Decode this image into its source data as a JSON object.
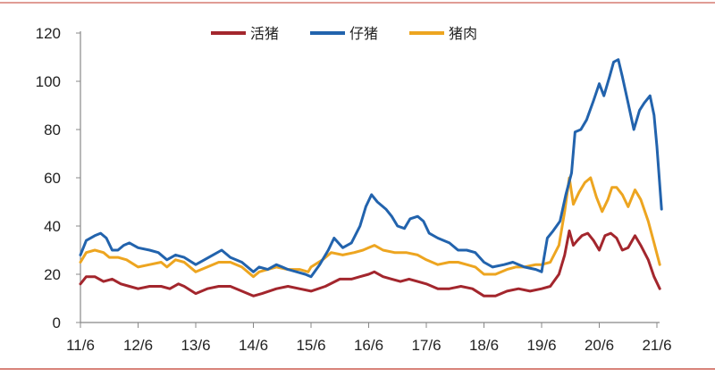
{
  "chart_data": {
    "type": "line",
    "title": "",
    "xlabel": "",
    "ylabel": "",
    "x_ticks": [
      "11/6",
      "12/6",
      "13/6",
      "14/6",
      "15/6",
      "16/6",
      "17/6",
      "18/6",
      "19/6",
      "20/6",
      "21/6"
    ],
    "ylim": [
      0,
      120
    ],
    "y_ticks": [
      0,
      20,
      40,
      60,
      80,
      100,
      120
    ],
    "grid": false,
    "legend_position": "top-center",
    "series": [
      {
        "name": "活猪",
        "color": "#a3262d",
        "points": [
          [
            0.0,
            16
          ],
          [
            0.1,
            19
          ],
          [
            0.25,
            19
          ],
          [
            0.4,
            17
          ],
          [
            0.55,
            18
          ],
          [
            0.7,
            16
          ],
          [
            0.85,
            15
          ],
          [
            1.0,
            14
          ],
          [
            1.2,
            15
          ],
          [
            1.4,
            15
          ],
          [
            1.55,
            14
          ],
          [
            1.7,
            16
          ],
          [
            1.8,
            15
          ],
          [
            2.0,
            12
          ],
          [
            2.2,
            14
          ],
          [
            2.4,
            15
          ],
          [
            2.6,
            15
          ],
          [
            2.8,
            13
          ],
          [
            3.0,
            11
          ],
          [
            3.15,
            12
          ],
          [
            3.4,
            14
          ],
          [
            3.6,
            15
          ],
          [
            3.8,
            14
          ],
          [
            4.0,
            13
          ],
          [
            4.25,
            15
          ],
          [
            4.5,
            18
          ],
          [
            4.7,
            18
          ],
          [
            4.85,
            19
          ],
          [
            5.0,
            20
          ],
          [
            5.1,
            21
          ],
          [
            5.25,
            19
          ],
          [
            5.4,
            18
          ],
          [
            5.55,
            17
          ],
          [
            5.7,
            18
          ],
          [
            5.85,
            17
          ],
          [
            6.0,
            16
          ],
          [
            6.2,
            14
          ],
          [
            6.4,
            14
          ],
          [
            6.6,
            15
          ],
          [
            6.8,
            14
          ],
          [
            7.0,
            11
          ],
          [
            7.2,
            11
          ],
          [
            7.4,
            13
          ],
          [
            7.6,
            14
          ],
          [
            7.8,
            13
          ],
          [
            8.0,
            14
          ],
          [
            8.15,
            15
          ],
          [
            8.3,
            20
          ],
          [
            8.4,
            28
          ],
          [
            8.48,
            38
          ],
          [
            8.55,
            32
          ],
          [
            8.62,
            34
          ],
          [
            8.7,
            36
          ],
          [
            8.8,
            37
          ],
          [
            8.9,
            34
          ],
          [
            9.0,
            30
          ],
          [
            9.1,
            36
          ],
          [
            9.2,
            37
          ],
          [
            9.3,
            35
          ],
          [
            9.4,
            30
          ],
          [
            9.5,
            31
          ],
          [
            9.62,
            36
          ],
          [
            9.72,
            32
          ],
          [
            9.85,
            26
          ],
          [
            9.95,
            19
          ],
          [
            10.05,
            14
          ]
        ]
      },
      {
        "name": "仔猪",
        "color": "#2263ad",
        "points": [
          [
            0.0,
            28
          ],
          [
            0.1,
            34
          ],
          [
            0.25,
            36
          ],
          [
            0.35,
            37
          ],
          [
            0.45,
            35
          ],
          [
            0.55,
            30
          ],
          [
            0.65,
            30
          ],
          [
            0.75,
            32
          ],
          [
            0.85,
            33
          ],
          [
            1.0,
            31
          ],
          [
            1.2,
            30
          ],
          [
            1.35,
            29
          ],
          [
            1.5,
            26
          ],
          [
            1.65,
            28
          ],
          [
            1.8,
            27
          ],
          [
            2.0,
            24
          ],
          [
            2.15,
            26
          ],
          [
            2.3,
            28
          ],
          [
            2.45,
            30
          ],
          [
            2.6,
            27
          ],
          [
            2.8,
            25
          ],
          [
            3.0,
            21
          ],
          [
            3.1,
            23
          ],
          [
            3.25,
            22
          ],
          [
            3.4,
            24
          ],
          [
            3.5,
            23
          ],
          [
            3.6,
            22
          ],
          [
            3.75,
            21
          ],
          [
            3.9,
            20
          ],
          [
            4.0,
            19
          ],
          [
            4.15,
            24
          ],
          [
            4.3,
            30
          ],
          [
            4.4,
            35
          ],
          [
            4.55,
            31
          ],
          [
            4.7,
            33
          ],
          [
            4.85,
            40
          ],
          [
            4.95,
            48
          ],
          [
            5.05,
            53
          ],
          [
            5.15,
            50
          ],
          [
            5.3,
            47
          ],
          [
            5.4,
            44
          ],
          [
            5.5,
            40
          ],
          [
            5.62,
            39
          ],
          [
            5.72,
            43
          ],
          [
            5.85,
            44
          ],
          [
            5.95,
            42
          ],
          [
            6.05,
            37
          ],
          [
            6.2,
            35
          ],
          [
            6.4,
            33
          ],
          [
            6.55,
            30
          ],
          [
            6.7,
            30
          ],
          [
            6.85,
            29
          ],
          [
            7.0,
            25
          ],
          [
            7.15,
            23
          ],
          [
            7.35,
            24
          ],
          [
            7.5,
            25
          ],
          [
            7.7,
            23
          ],
          [
            7.9,
            22
          ],
          [
            8.0,
            21
          ],
          [
            8.1,
            35
          ],
          [
            8.2,
            38
          ],
          [
            8.32,
            42
          ],
          [
            8.42,
            53
          ],
          [
            8.52,
            62
          ],
          [
            8.58,
            79
          ],
          [
            8.68,
            80
          ],
          [
            8.78,
            84
          ],
          [
            8.9,
            92
          ],
          [
            9.0,
            99
          ],
          [
            9.08,
            94
          ],
          [
            9.18,
            102
          ],
          [
            9.25,
            108
          ],
          [
            9.33,
            109
          ],
          [
            9.4,
            102
          ],
          [
            9.5,
            91
          ],
          [
            9.6,
            80
          ],
          [
            9.7,
            88
          ],
          [
            9.78,
            91
          ],
          [
            9.88,
            94
          ],
          [
            9.95,
            86
          ],
          [
            10.0,
            73
          ],
          [
            10.08,
            47
          ]
        ]
      },
      {
        "name": "猪肉",
        "color": "#eda520",
        "points": [
          [
            0.0,
            25
          ],
          [
            0.1,
            29
          ],
          [
            0.25,
            30
          ],
          [
            0.4,
            29
          ],
          [
            0.5,
            27
          ],
          [
            0.65,
            27
          ],
          [
            0.8,
            26
          ],
          [
            1.0,
            23
          ],
          [
            1.2,
            24
          ],
          [
            1.4,
            25
          ],
          [
            1.5,
            23
          ],
          [
            1.65,
            26
          ],
          [
            1.8,
            25
          ],
          [
            2.0,
            21
          ],
          [
            2.2,
            23
          ],
          [
            2.4,
            25
          ],
          [
            2.6,
            25
          ],
          [
            2.8,
            23
          ],
          [
            3.0,
            19
          ],
          [
            3.1,
            21
          ],
          [
            3.25,
            22
          ],
          [
            3.4,
            23
          ],
          [
            3.6,
            22
          ],
          [
            3.8,
            22
          ],
          [
            3.95,
            21
          ],
          [
            4.0,
            23
          ],
          [
            4.2,
            26
          ],
          [
            4.35,
            29
          ],
          [
            4.55,
            28
          ],
          [
            4.75,
            29
          ],
          [
            4.9,
            30
          ],
          [
            5.0,
            31
          ],
          [
            5.1,
            32
          ],
          [
            5.25,
            30
          ],
          [
            5.45,
            29
          ],
          [
            5.65,
            29
          ],
          [
            5.85,
            28
          ],
          [
            6.0,
            26
          ],
          [
            6.2,
            24
          ],
          [
            6.4,
            25
          ],
          [
            6.55,
            25
          ],
          [
            6.7,
            24
          ],
          [
            6.85,
            23
          ],
          [
            7.0,
            20
          ],
          [
            7.2,
            20
          ],
          [
            7.4,
            22
          ],
          [
            7.55,
            23
          ],
          [
            7.7,
            23
          ],
          [
            7.9,
            24
          ],
          [
            8.0,
            24
          ],
          [
            8.15,
            25
          ],
          [
            8.3,
            32
          ],
          [
            8.4,
            46
          ],
          [
            8.48,
            60
          ],
          [
            8.55,
            49
          ],
          [
            8.65,
            54
          ],
          [
            8.75,
            58
          ],
          [
            8.85,
            60
          ],
          [
            8.95,
            52
          ],
          [
            9.05,
            46
          ],
          [
            9.15,
            51
          ],
          [
            9.22,
            56
          ],
          [
            9.3,
            56
          ],
          [
            9.4,
            53
          ],
          [
            9.5,
            48
          ],
          [
            9.62,
            55
          ],
          [
            9.72,
            51
          ],
          [
            9.85,
            42
          ],
          [
            9.95,
            33
          ],
          [
            10.05,
            24
          ]
        ]
      }
    ]
  }
}
